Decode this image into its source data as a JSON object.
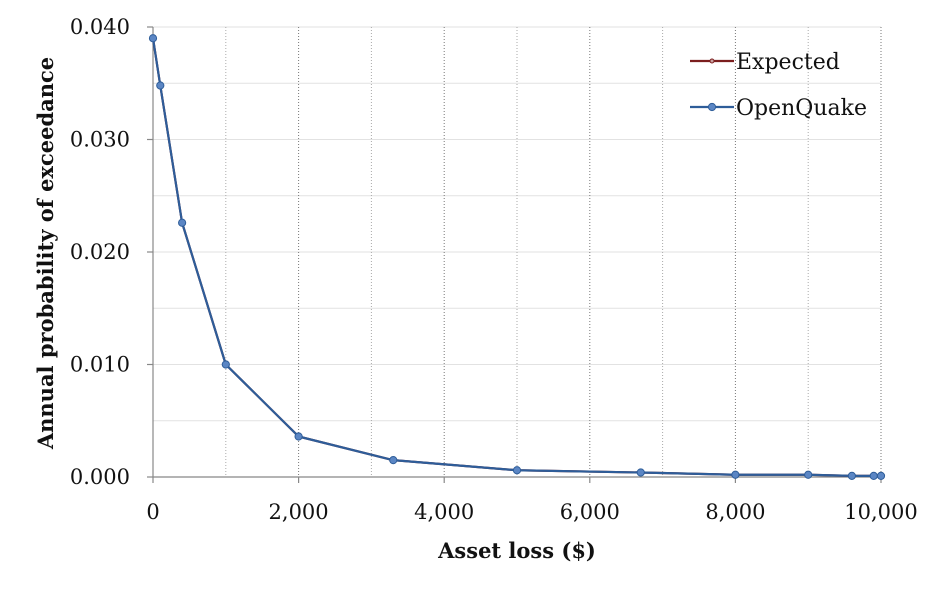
{
  "chart_data": {
    "type": "line",
    "xlabel": "Asset loss ($)",
    "ylabel": "Annual probability of exceedance",
    "xlim": [
      0,
      10000
    ],
    "ylim": [
      0,
      0.04
    ],
    "x_ticks": [
      0,
      2000,
      4000,
      6000,
      8000,
      10000
    ],
    "x_tick_labels": [
      "0",
      "2,000",
      "4,000",
      "6,000",
      "8,000",
      "10,000"
    ],
    "y_ticks": [
      0,
      0.01,
      0.02,
      0.03,
      0.04
    ],
    "y_tick_labels": [
      "0.000",
      "0.010",
      "0.020",
      "0.030",
      "0.040"
    ],
    "grid": {
      "vertical": "dotted",
      "horizontal": "light"
    },
    "legend_position": "top-right",
    "series": [
      {
        "name": "Expected",
        "color": "#7b1e1e",
        "x": [
          0,
          100,
          400,
          1000,
          2000,
          3300,
          5000,
          6700,
          8000,
          9000,
          9600,
          9900,
          10000
        ],
        "y": [
          0.039,
          0.0348,
          0.0226,
          0.01,
          0.0036,
          0.0015,
          0.0006,
          0.0004,
          0.0002,
          0.0002,
          0.0001,
          0.0001,
          0.0001
        ]
      },
      {
        "name": "OpenQuake",
        "color": "#2e5d99",
        "x": [
          0,
          100,
          400,
          1000,
          2000,
          3300,
          5000,
          6700,
          8000,
          9000,
          9600,
          9900,
          10000
        ],
        "y": [
          0.039,
          0.0348,
          0.0226,
          0.01,
          0.0036,
          0.0015,
          0.0006,
          0.0004,
          0.0002,
          0.0002,
          0.0001,
          0.0001,
          0.0001
        ]
      }
    ]
  }
}
